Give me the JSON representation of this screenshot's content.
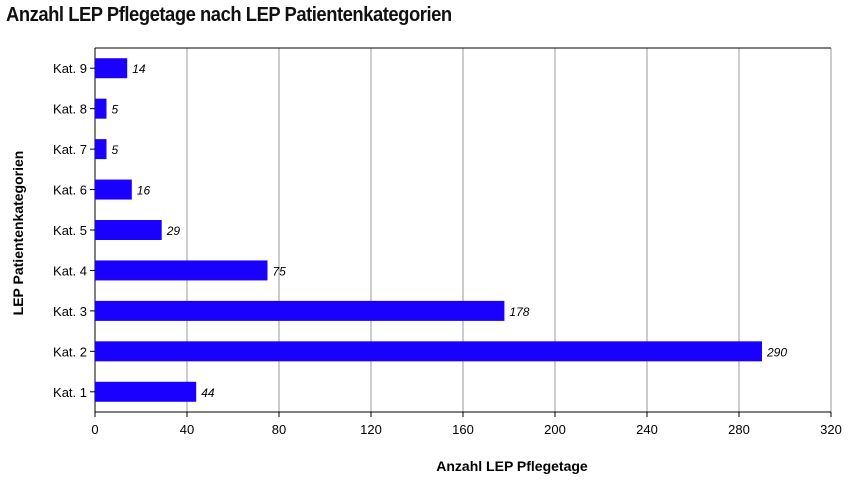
{
  "chart_data": {
    "type": "bar",
    "orientation": "horizontal",
    "title": "Anzahl LEP Pflegetage nach LEP Patientenkategorien",
    "xlabel": "Anzahl LEP Pflegetage",
    "ylabel": "LEP Patientenkategorien",
    "categories": [
      "Kat. 9",
      "Kat. 8",
      "Kat. 7",
      "Kat. 6",
      "Kat. 5",
      "Kat. 4",
      "Kat. 3",
      "Kat. 2",
      "Kat. 1"
    ],
    "values": [
      14,
      5,
      5,
      16,
      29,
      75,
      178,
      290,
      44
    ],
    "xlim": [
      0,
      320
    ],
    "xticks": [
      0,
      40,
      80,
      120,
      160,
      200,
      240,
      280,
      320
    ],
    "grid": true,
    "bar_color": "#1a00ff",
    "grid_color": "#999999"
  }
}
